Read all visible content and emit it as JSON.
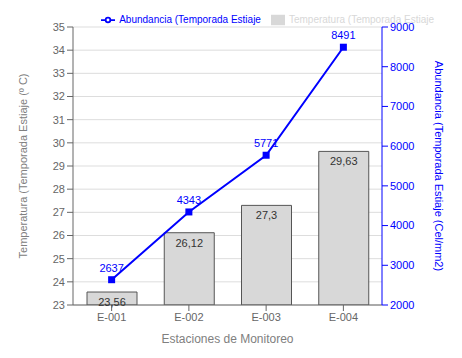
{
  "chart_data": {
    "type": "bar",
    "categories": [
      "E-001",
      "E-002",
      "E-003",
      "E-004"
    ],
    "xlabel": "Estaciones de Monitoreo",
    "ylabel": "Temperatura (Temporada Estiaje (º C)",
    "y2label": "Abundancia (Temporada Estiaje (Cel/mm2)",
    "ylim": [
      23,
      35
    ],
    "yticks": [
      23,
      24,
      25,
      26,
      27,
      28,
      29,
      30,
      31,
      32,
      33,
      34,
      35
    ],
    "y2lim": [
      2000,
      9000
    ],
    "y2ticks": [
      2000,
      3000,
      4000,
      5000,
      6000,
      7000,
      8000,
      9000
    ],
    "grid": true,
    "legend": "upper right",
    "data_labels": true,
    "series": [
      {
        "name": "Temperatura (Temporada Estiaje",
        "type": "bar",
        "color": "#d8d8d8",
        "values": [
          23.56,
          26.12,
          27.3,
          29.63
        ],
        "value_labels": [
          "23,56",
          "26,12",
          "27,3",
          "29,63"
        ]
      },
      {
        "name": "Abundancia (Temporada Estiaje",
        "type": "line",
        "axis": "y2",
        "color": "blue",
        "marker": "square",
        "values": [
          2637,
          4343,
          5771,
          8491
        ]
      }
    ]
  }
}
